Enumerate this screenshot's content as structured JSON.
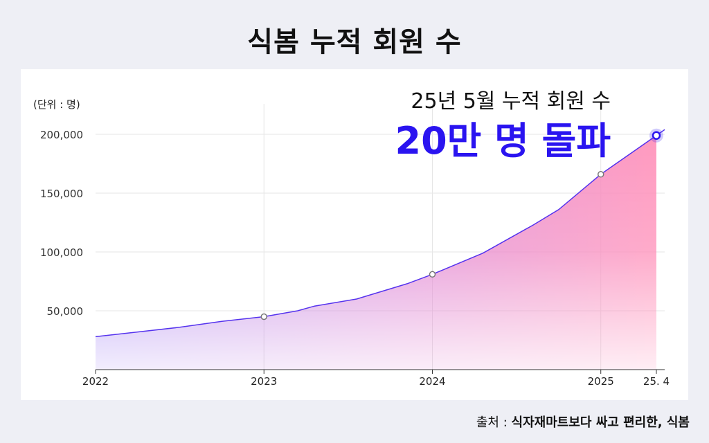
{
  "page": {
    "title": "식봄 누적 회원 수",
    "source_label": "출처 : ",
    "source_text": "식자재마트보다 싸고 편리한, 식봄"
  },
  "chart_data": {
    "type": "area",
    "unit_label": "(단위 : 명)",
    "annotation_line1": "25년 5월 누적 회원 수",
    "annotation_line2": "20만 명 돌파",
    "x_ticks": [
      "2022",
      "2023",
      "2024",
      "2025",
      "25. 4"
    ],
    "y_ticks": [
      "50,000",
      "100,000",
      "150,000",
      "200,000"
    ],
    "y_tick_values": [
      50000,
      100000,
      150000,
      200000
    ],
    "ylim": [
      0,
      220000
    ],
    "x_range": [
      2022.0,
      2025.33
    ],
    "grid": true,
    "series": [
      {
        "x": [
          2022.0,
          2022.25,
          2022.5,
          2022.75,
          2023.0,
          2023.2,
          2023.3,
          2023.55,
          2023.85,
          2024.0,
          2024.3,
          2024.6,
          2024.75,
          2025.0,
          2025.33
        ],
        "y": [
          28000,
          32000,
          36000,
          41000,
          45000,
          50000,
          54000,
          60000,
          73000,
          81000,
          99000,
          123000,
          136000,
          166000,
          199000
        ]
      }
    ],
    "marked_points": [
      {
        "x": 2023.0,
        "y": 45000
      },
      {
        "x": 2024.0,
        "y": 81000
      },
      {
        "x": 2025.0,
        "y": 166000
      },
      {
        "x": 2025.33,
        "y": 199000
      }
    ],
    "colors": {
      "line": "#5533ee",
      "fill_left": "#a98cf5",
      "fill_mid": "#e08ad6",
      "fill_right": "#ff8fb8",
      "highlight": "#2a14f0",
      "axis": "#333333",
      "grid": "#e6e6e6"
    }
  }
}
